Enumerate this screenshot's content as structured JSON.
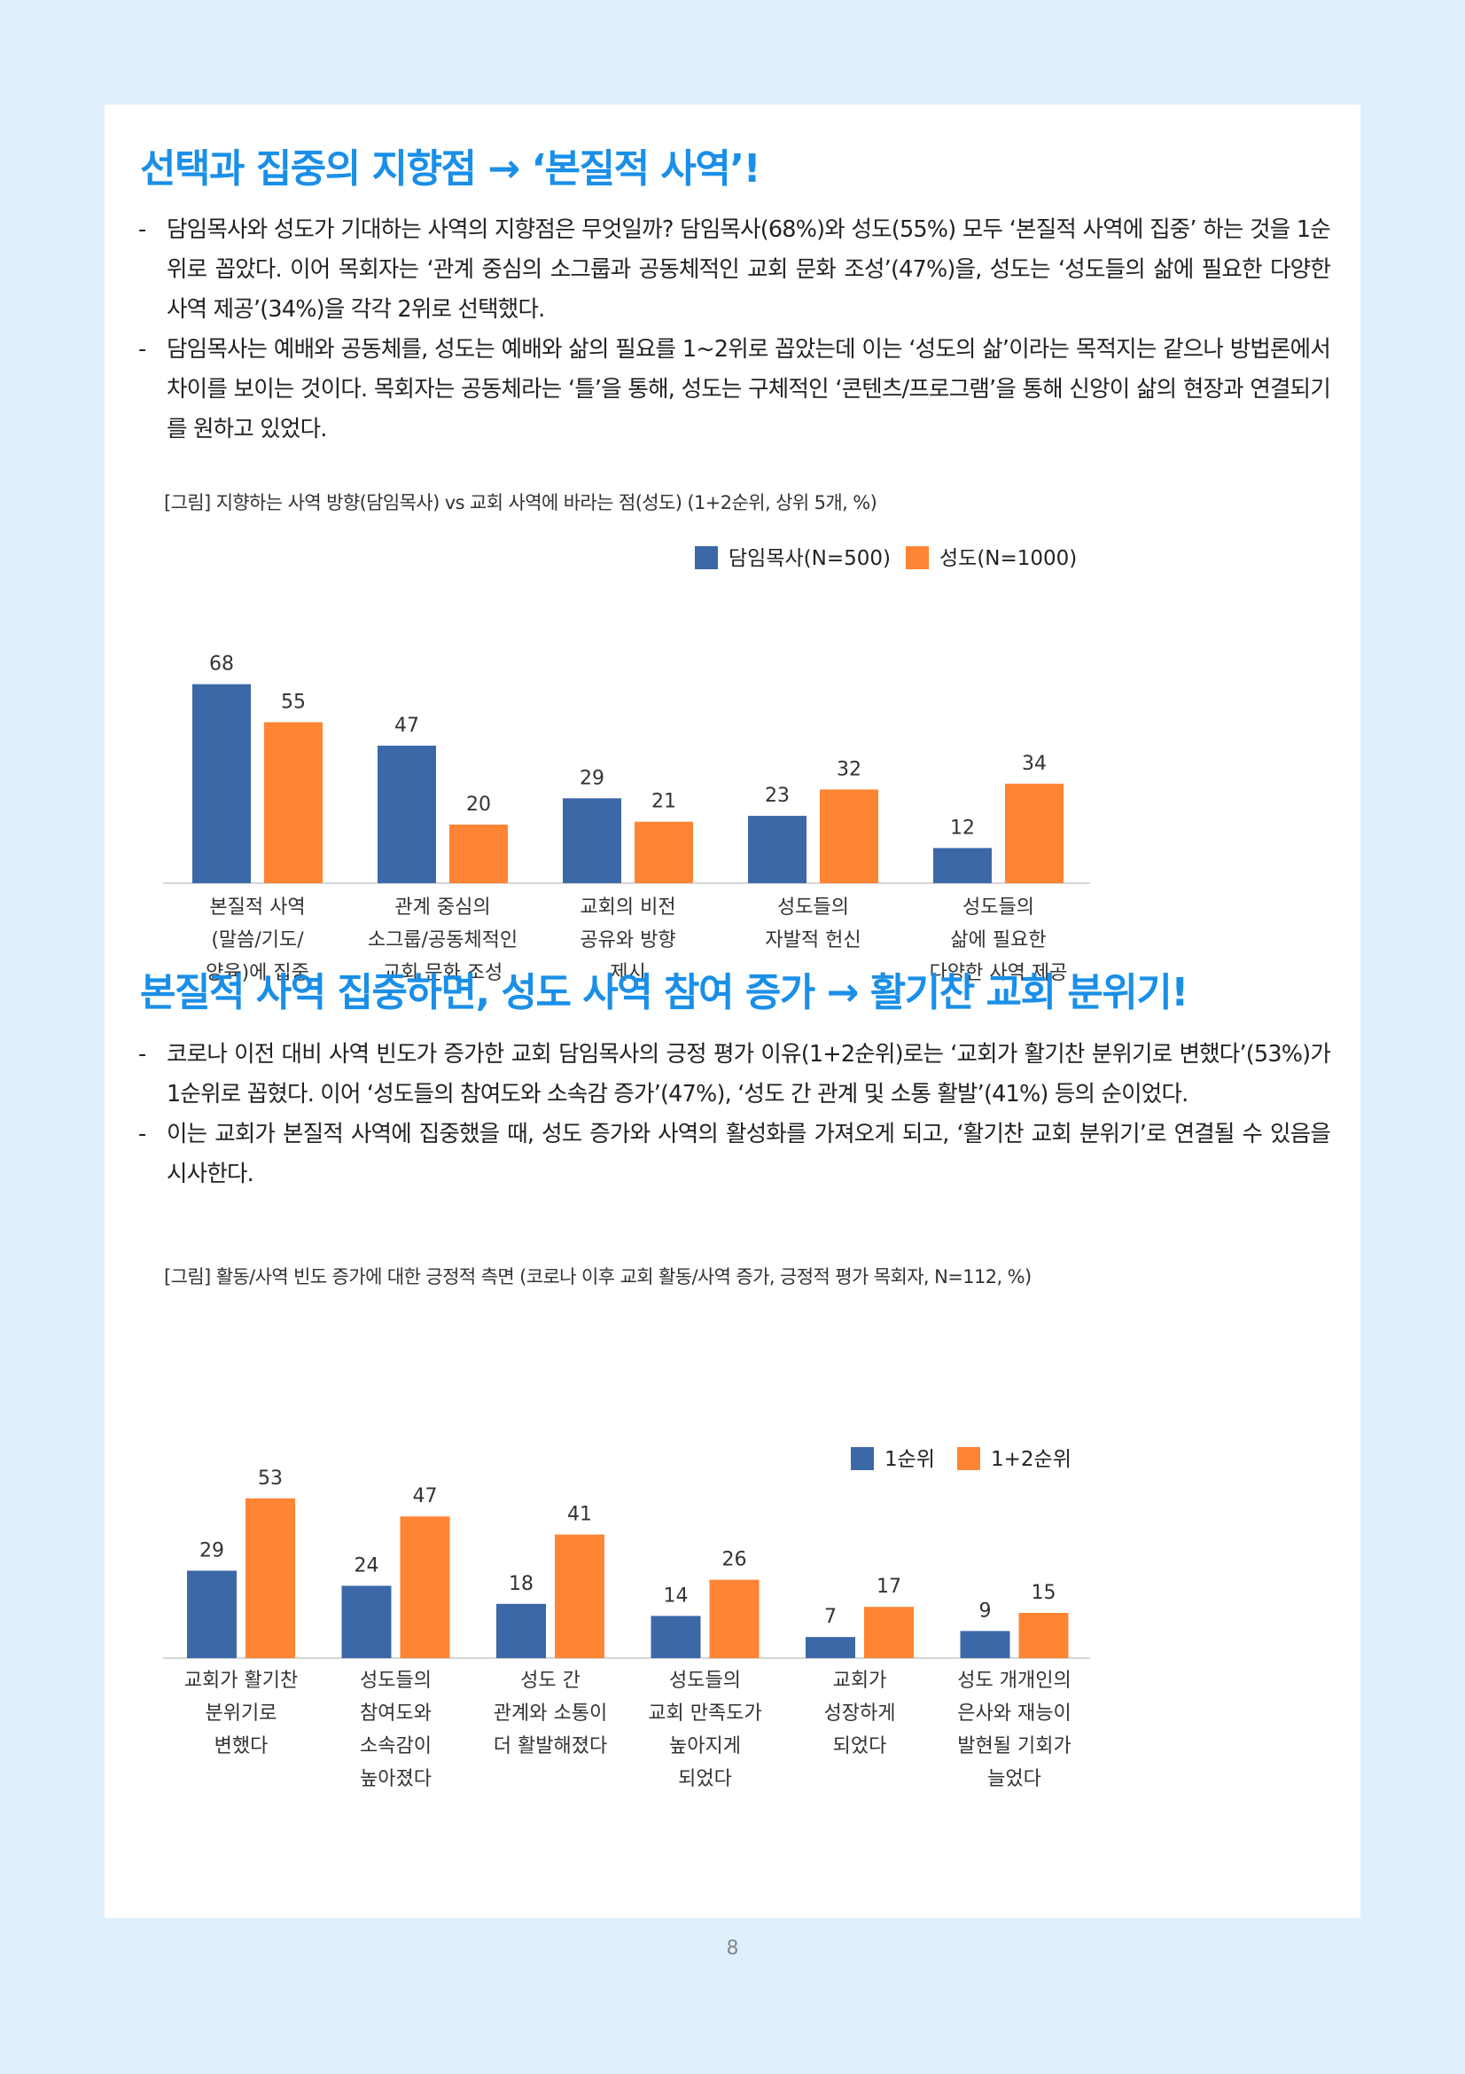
{
  "section1": {
    "title": "선택과 집중의 지향점 → ‘본질적 사역’!",
    "bullets": [
      "담임목사와 성도가 기대하는 사역의 지향점은 무엇일까? 담임목사(68%)와 성도(55%) 모두 ‘본질적 사역에 집중’ 하는 것을 1순위로 꼽았다. 이어 목회자는 ‘관계 중심의 소그룹과 공동체적인 교회 문화 조성’(47%)을, 성도는 ‘성도들의 삶에 필요한 다양한 사역 제공’(34%)을 각각 2위로 선택했다.",
      "담임목사는 예배와 공동체를, 성도는 예배와 삶의 필요를 1~2위로 꼽았는데 이는 ‘성도의 삶’이라는 목적지는 같으나 방법론에서 차이를 보이는 것이다. 목회자는 공동체라는 ‘틀’을 통해, 성도는 구체적인 ‘콘텐츠/프로그램’을 통해 신앙이 삶의 현장과 연결되기를 원하고 있었다."
    ],
    "caption": "[그림] 지향하는 사역 방향(담임목사) vs 교회 사역에 바라는 점(성도) (1+2순위, 상위 5개, %)"
  },
  "section2": {
    "title": "본질적 사역 집중하면, 성도 사역 참여 증가 → 활기찬 교회 분위기!",
    "bullets": [
      "코로나 이전 대비 사역 빈도가 증가한 교회 담임목사의 긍정 평가 이유(1+2순위)로는 ‘교회가 활기찬 분위기로 변했다’(53%)가 1순위로 꼽혔다. 이어 ‘성도들의 참여도와 소속감 증가’(47%), ‘성도 간 관계 및 소통 활발’(41%) 등의 순이었다.",
      "이는 교회가 본질적 사역에 집중했을 때, 성도 증가와 사역의 활성화를 가져오게 되고, ‘활기찬 교회 분위기’로 연결될 수 있음을 시사한다."
    ],
    "caption": "[그림] 활동/사역 빈도 증가에 대한 긍정적 측면 (코로나 이후 교회 활동/사역 증가, 긍정적 평가 목회자, N=112, %)"
  },
  "page_number": "8",
  "chart_data": [
    {
      "type": "bar",
      "categories": [
        [
          "본질적 사역",
          "(말씀/기도/",
          "양육)에 집중"
        ],
        [
          "관계 중심의",
          "소그룹/공동체적인",
          "교회 문화 조성"
        ],
        [
          "교회의 비전",
          "공유와 방향",
          "제시"
        ],
        [
          "성도들의",
          "자발적 헌신"
        ],
        [
          "성도들의",
          "삶에 필요한",
          "다양한 사역 제공"
        ]
      ],
      "series": [
        {
          "name": "담임목사(N=500)",
          "color": "#3c68a8",
          "values": [
            68,
            47,
            29,
            23,
            12
          ]
        },
        {
          "name": "성도(N=1000)",
          "color": "#ff8433",
          "values": [
            55,
            20,
            21,
            32,
            34
          ]
        }
      ],
      "ylim": [
        0,
        70
      ],
      "legend": "top-right",
      "grid": false
    },
    {
      "type": "bar",
      "categories": [
        [
          "교회가 활기찬",
          "분위기로",
          "변했다"
        ],
        [
          "성도들의",
          "참여도와",
          "소속감이",
          "높아졌다"
        ],
        [
          "성도 간",
          "관계와 소통이",
          "더 활발해졌다"
        ],
        [
          "성도들의",
          "교회 만족도가",
          "높아지게",
          "되었다"
        ],
        [
          "교회가",
          "성장하게",
          "되었다"
        ],
        [
          "성도 개개인의",
          "은사와 재능이",
          "발현될 기회가",
          "늘었다"
        ]
      ],
      "series": [
        {
          "name": "1순위",
          "color": "#3c68a8",
          "values": [
            29,
            24,
            18,
            14,
            7,
            9
          ]
        },
        {
          "name": "1+2순위",
          "color": "#ff8433",
          "values": [
            53,
            47,
            41,
            26,
            17,
            15
          ]
        }
      ],
      "ylim": [
        0,
        60
      ],
      "legend": "top-right",
      "grid": false
    }
  ]
}
